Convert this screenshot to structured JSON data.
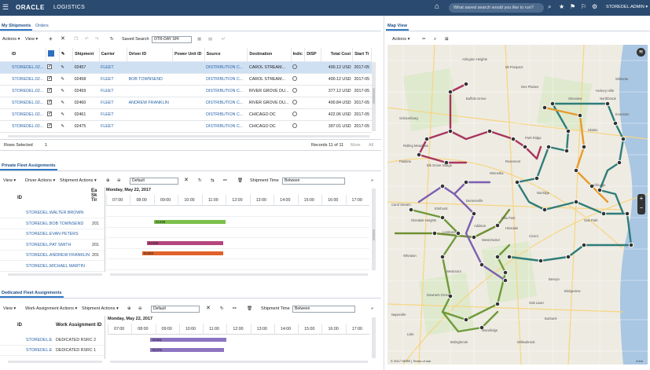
{
  "topbar": {
    "menu_icon": "hamburger-menu-icon",
    "brand": "ORACLE",
    "app_name": "LOGISTICS",
    "search_placeholder": "What saved search would you like to run?",
    "user": "STOREDEL.ADMIN ▾"
  },
  "shipments": {
    "tabs": [
      "My Shipments",
      "Orders"
    ],
    "actions_label": "Actions ▾",
    "view_label": "View ▾",
    "saved_search_label": "Saved Search",
    "saved_search_value": "OTR-DAY SHI",
    "columns": [
      "ID",
      "",
      "",
      "Shipment",
      "Carrier",
      "Driver ID",
      "Power Unit ID",
      "Source",
      "Destination",
      "Indic",
      "DISP",
      "Total Cost",
      "Start Ti"
    ],
    "rows": [
      {
        "id": "STOREDEL.02...",
        "checked": true,
        "shipment": "02457",
        "carrier": "FLEET",
        "driver": "",
        "source": "DISTRIBUTION C...",
        "destination": "CAROL STREAM...",
        "cost": "400.12 USD",
        "start": "2017-05",
        "selected": true
      },
      {
        "id": "STOREDEL.02...",
        "checked": true,
        "shipment": "02458",
        "carrier": "FLEET",
        "driver": "BOB TOWNSEND",
        "source": "DISTRIBUTION C...",
        "destination": "CAROL STREAM...",
        "cost": "400.12 USD",
        "start": "2017-05",
        "selected": false
      },
      {
        "id": "STOREDEL.02...",
        "checked": true,
        "shipment": "02459",
        "carrier": "FLEET",
        "driver": "",
        "source": "DISTRIBUTION C...",
        "destination": "RIVER GROVE DU...",
        "cost": "377.12 USD",
        "start": "2017-05",
        "selected": false
      },
      {
        "id": "STOREDEL.02...",
        "checked": true,
        "shipment": "02460",
        "carrier": "FLEET",
        "driver": "ANDREW FRANKLIN",
        "source": "DISTRIBUTION C...",
        "destination": "RIVER GROVE DU...",
        "cost": "400.84 USD",
        "start": "2017-05",
        "selected": false
      },
      {
        "id": "STOREDEL.02...",
        "checked": true,
        "shipment": "02461",
        "carrier": "FLEET",
        "driver": "",
        "source": "DISTRIBUTION C...",
        "destination": "CHICAGO DC",
        "cost": "422.06 USD",
        "start": "2017-05",
        "selected": false
      },
      {
        "id": "STOREDEL.02...",
        "checked": true,
        "shipment": "02475",
        "carrier": "FLEET",
        "driver": "",
        "source": "DISTRIBUTION C...",
        "destination": "CHICAGO DC",
        "cost": "397.01 USD",
        "start": "2017-05",
        "selected": false
      }
    ],
    "rows_selected_label": "Rows Selected",
    "rows_selected_value": "1",
    "records_label": "Records 11 of 11",
    "more_label": "More",
    "all_label": "All"
  },
  "private_fleet": {
    "tab": "Private Fleet Assignments",
    "view_label": "View ▾",
    "driver_actions": "Driver Actions ▾",
    "shipment_actions": "Shipment Actions ▾",
    "layout": "Default",
    "shipment_time_label": "Shipment Time",
    "shipment_time_value": "Between",
    "date": "Monday, May 22, 2017",
    "id_header": "ID",
    "extra_header": "Ea Sk Tir",
    "hours": [
      "07:00",
      "08:00",
      "09:00",
      "10:00",
      "11:00",
      "12:00",
      "13:00",
      "14:00",
      "15:00",
      "16:00",
      "17:00"
    ],
    "drivers": [
      {
        "name": "STOREDEL.WALTER BROWN",
        "extra": "",
        "bar": null
      },
      {
        "name": "STOREDEL.BOB TOWNSEND",
        "extra": "201",
        "bar": {
          "label": "02458",
          "start": 9.0,
          "end": 12.0,
          "color": "#7cbf4a"
        }
      },
      {
        "name": "STOREDEL.EVAN PETERS",
        "extra": "",
        "bar": null
      },
      {
        "name": "STOREDEL.PAT SMITH",
        "extra": "201",
        "bar": {
          "label": "02459",
          "start": 8.7,
          "end": 11.9,
          "color": "#b5457c"
        }
      },
      {
        "name": "STOREDEL.ANDREW FRANKLIN",
        "extra": "201",
        "bar": {
          "label": "02460",
          "start": 8.5,
          "end": 11.9,
          "color": "#e0622a"
        }
      },
      {
        "name": "STOREDEL.MICHAEL MARTIN",
        "extra": "",
        "bar": null
      }
    ]
  },
  "dedicated_fleet": {
    "tab": "Dedicated Fleet Assignments",
    "view_label": "View ▾",
    "work_actions": "Work Assignment Actions ▾",
    "shipment_actions": "Shipment Actions ▾",
    "layout": "Default",
    "shipment_time_label": "Shipment Time",
    "shipment_time_value": "Between",
    "date": "Monday, May 22, 2017",
    "id_header": "ID",
    "wa_header": "Work Assignment ID",
    "hours": [
      "07:00",
      "08:00",
      "09:00",
      "10:00",
      "11:00",
      "12:00",
      "13:00",
      "14:00",
      "15:00",
      "16:00",
      "17:00"
    ],
    "rows": [
      {
        "id": "STOREDEL.E",
        "wa": "DEDICATED RSRC 2",
        "bar": {
          "label": "02461",
          "start": 8.8,
          "end": 12.0,
          "color": "#8d74c2"
        }
      },
      {
        "id": "STOREDEL.E",
        "wa": "DEDICATED RSRC 1",
        "bar": {
          "label": "02475",
          "start": 8.8,
          "end": 11.9,
          "color": "#8d74c2"
        }
      }
    ]
  },
  "map": {
    "tab": "Map View",
    "actions_label": "Actions ▾",
    "zoom_in": "+",
    "zoom_out": "−",
    "scale": "5 km",
    "attribution": "© 2017 HERE | Terms of use",
    "places": [
      "Arlington Heights",
      "Mt Prospect",
      "Des Plaines",
      "Skokie",
      "Evanston",
      "Glenview",
      "Schaumburg",
      "Elk Grove Village",
      "Park Ridge",
      "Rosemont",
      "Norridge",
      "Elmhurst",
      "Oak Park",
      "Chicago",
      "Lombard",
      "Wheaton",
      "Glendale Heights",
      "Carol Stream",
      "Downers Grove",
      "Naperville",
      "Bolingbrook",
      "Oak Lawn",
      "Berwyn",
      "Cicero",
      "Hinsdale",
      "Burbank",
      "Lisle",
      "Westmont",
      "Palatine",
      "Rolling Meadows",
      "Buffalo Grove",
      "Woodridge",
      "Willowbrook",
      "Bridgeview",
      "Hickory Hills",
      "Northbrook",
      "Wilmette",
      "Winnetka",
      "Bensenville",
      "Addison",
      "Villa Park",
      "Westchester"
    ]
  }
}
